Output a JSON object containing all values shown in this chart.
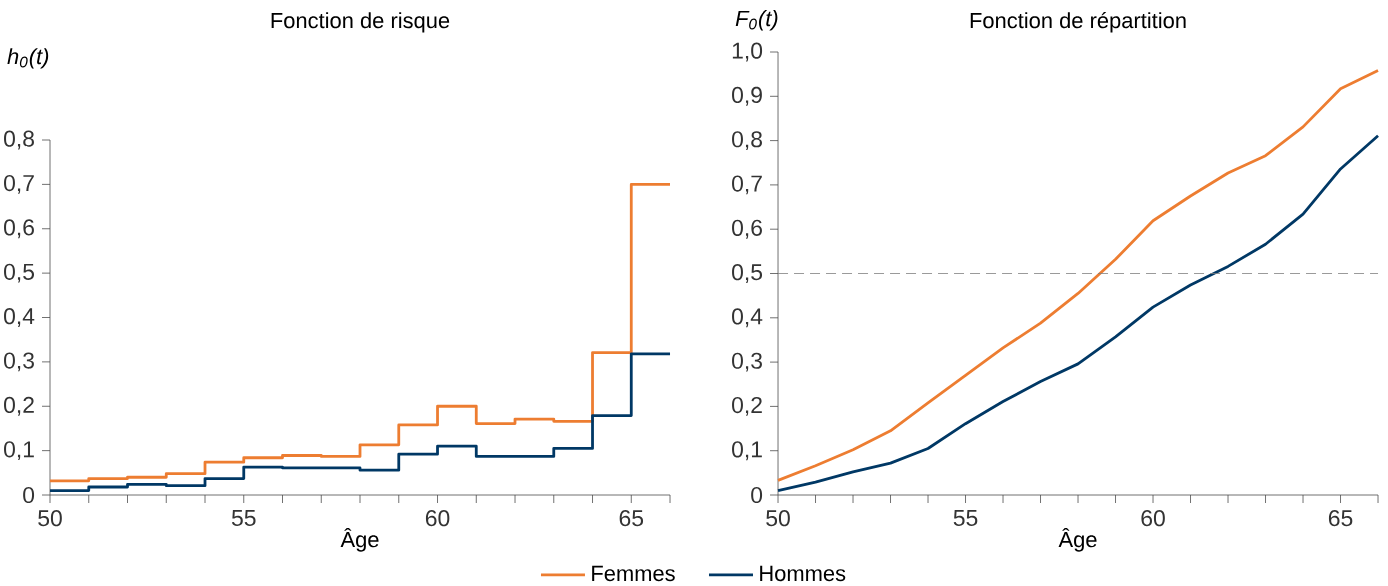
{
  "chart_data": [
    {
      "type": "step",
      "title": "Fonction de risque",
      "ylabel": "h$_{0}$(t)",
      "xlabel": "Âge",
      "x": [
        50,
        51,
        52,
        53,
        54,
        55,
        56,
        57,
        58,
        59,
        60,
        61,
        62,
        63,
        64,
        65,
        66
      ],
      "series": [
        {
          "name": "Femmes",
          "color": "#ed7d31",
          "values": [
            0.032,
            0.037,
            0.04,
            0.048,
            0.074,
            0.084,
            0.089,
            0.087,
            0.113,
            0.158,
            0.2,
            0.161,
            0.171,
            0.166,
            0.321,
            0.7,
            0.7
          ]
        },
        {
          "name": "Hommes",
          "color": "#003865",
          "values": [
            0.01,
            0.018,
            0.024,
            0.021,
            0.037,
            0.063,
            0.061,
            0.061,
            0.056,
            0.092,
            0.11,
            0.087,
            0.087,
            0.105,
            0.179,
            0.318,
            0.318
          ]
        }
      ],
      "xlim": [
        50,
        66
      ],
      "xticks": [
        50,
        {
          "value": 51,
          "label": null
        },
        {
          "value": 52,
          "label": null
        },
        {
          "value": 53,
          "label": null
        },
        {
          "value": 54,
          "label": null
        },
        55,
        {
          "value": 56,
          "label": null
        },
        {
          "value": 57,
          "label": null
        },
        {
          "value": 58,
          "label": null
        },
        {
          "value": 59,
          "label": null
        },
        60,
        {
          "value": 61,
          "label": null
        },
        {
          "value": 62,
          "label": null
        },
        {
          "value": 63,
          "label": null
        },
        {
          "value": 64,
          "label": null
        },
        65,
        {
          "value": 66,
          "label": null
        }
      ],
      "ylim": [
        0,
        0.8
      ],
      "yticks": [
        0,
        {
          "value": 0.1,
          "label": "0,1"
        },
        {
          "value": 0.2,
          "label": "0,2"
        },
        {
          "value": 0.3,
          "label": "0,3"
        },
        {
          "value": 0.4,
          "label": "0,4"
        },
        {
          "value": 0.5,
          "label": "0,5"
        },
        {
          "value": 0.6,
          "label": "0,6"
        },
        {
          "value": 0.7,
          "label": "0,7"
        },
        {
          "value": 0.8,
          "label": "0,8"
        }
      ],
      "grid": false,
      "legend": "bottom"
    },
    {
      "type": "line",
      "title": "Fonction de répartition",
      "ylabel": "F$_{0}$(t)",
      "xlabel": "Âge",
      "x": [
        50,
        51,
        52,
        53,
        54,
        55,
        56,
        57,
        58,
        59,
        60,
        61,
        62,
        63,
        64,
        65,
        66
      ],
      "series": [
        {
          "color": "#ed7d31",
          "values": [
            0.033,
            0.066,
            0.102,
            0.145,
            0.208,
            0.27,
            0.332,
            0.388,
            0.455,
            0.532,
            0.619,
            0.675,
            0.727,
            0.766,
            0.831,
            0.917,
            0.958
          ]
        },
        {
          "color": "#003865",
          "values": [
            0.01,
            0.029,
            0.052,
            0.072,
            0.105,
            0.161,
            0.211,
            0.256,
            0.296,
            0.357,
            0.424,
            0.474,
            0.516,
            0.566,
            0.634,
            0.736,
            0.811
          ]
        }
      ],
      "xlim": [
        50,
        66
      ],
      "xticks": [
        50,
        {
          "value": 51,
          "label": null
        },
        {
          "value": 52,
          "label": null
        },
        {
          "value": 53,
          "label": null
        },
        {
          "value": 54,
          "label": null
        },
        55,
        {
          "value": 56,
          "label": null
        },
        {
          "value": 57,
          "label": null
        },
        {
          "value": 58,
          "label": null
        },
        {
          "value": 59,
          "label": null
        },
        60,
        {
          "value": 61,
          "label": null
        },
        {
          "value": 62,
          "label": null
        },
        {
          "value": 63,
          "label": null
        },
        {
          "value": 64,
          "label": null
        },
        65,
        {
          "value": 66,
          "label": null
        }
      ],
      "ylim": [
        0,
        1.0
      ],
      "yticks": [
        0,
        {
          "value": 0.1,
          "label": "0,1"
        },
        {
          "value": 0.2,
          "label": "0,2"
        },
        {
          "value": 0.3,
          "label": "0,3"
        },
        {
          "value": 0.4,
          "label": "0,4"
        },
        {
          "value": 0.5,
          "label": "0,5"
        },
        {
          "value": 0.6,
          "label": "0,6"
        },
        {
          "value": 0.7,
          "label": "0,7"
        },
        {
          "value": 0.8,
          "label": "0,8"
        },
        {
          "value": 0.9,
          "label": "0,9"
        },
        {
          "value": 1.0,
          "label": "1,0"
        }
      ],
      "ref_lines": [
        {
          "axis": "y",
          "value": 0.5,
          "color": "#808080",
          "line_style": "dashed"
        }
      ],
      "grid": false
    }
  ]
}
